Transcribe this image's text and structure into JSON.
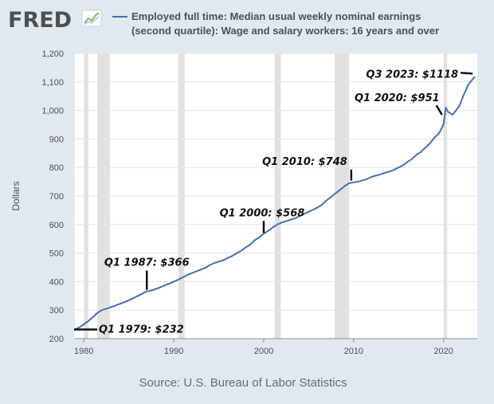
{
  "header": {
    "logo_text": "FRED",
    "logo_icon": "trend-chart-icon",
    "legend_line1": "Employed full time: Median usual weekly nominal earnings",
    "legend_line2": "(second quartile): Wage and salary workers: 16 years and over"
  },
  "footer": {
    "source": "Source: U.S. Bureau of Labor Statistics"
  },
  "colors": {
    "background": "#e1e9f0",
    "plot_background": "#ffffff",
    "series": "#4572a7",
    "recession": "#e1e1e1",
    "grid": "#e6e6e6",
    "text": "#4f4f4f",
    "annotation": "#111111"
  },
  "chart_data": {
    "type": "line",
    "title": "",
    "xlabel": "",
    "ylabel": "Dollars",
    "xlim": [
      1979,
      2023.75
    ],
    "ylim": [
      200,
      1200
    ],
    "x_ticks": [
      1980,
      1990,
      2000,
      2010,
      2020
    ],
    "y_ticks": [
      200,
      300,
      400,
      500,
      600,
      700,
      800,
      900,
      1000,
      1100,
      1200
    ],
    "y_tick_labels": [
      "200",
      "300",
      "400",
      "500",
      "600",
      "700",
      "800",
      "900",
      "1,000",
      "1,100",
      "1,200"
    ],
    "grid": "horizontal",
    "legend": "top",
    "recessions": [
      [
        1980.0,
        1980.5
      ],
      [
        1981.5,
        1982.9
      ],
      [
        1990.5,
        1991.2
      ],
      [
        2001.2,
        2001.9
      ],
      [
        2007.9,
        2009.5
      ],
      [
        2020.0,
        2020.4
      ]
    ],
    "series": [
      {
        "name": "Employed full time: Median usual weekly nominal earnings (second quartile): Wage and salary workers: 16 years and over",
        "points": [
          [
            1979.0,
            232
          ],
          [
            1979.5,
            240
          ],
          [
            1980.0,
            250
          ],
          [
            1980.5,
            262
          ],
          [
            1981.0,
            275
          ],
          [
            1981.5,
            290
          ],
          [
            1982.0,
            300
          ],
          [
            1982.5,
            305
          ],
          [
            1983.0,
            310
          ],
          [
            1983.5,
            316
          ],
          [
            1984.0,
            322
          ],
          [
            1984.5,
            328
          ],
          [
            1985.0,
            335
          ],
          [
            1985.5,
            342
          ],
          [
            1986.0,
            350
          ],
          [
            1986.5,
            358
          ],
          [
            1987.0,
            366
          ],
          [
            1987.5,
            369
          ],
          [
            1988.0,
            374
          ],
          [
            1988.5,
            380
          ],
          [
            1989.0,
            387
          ],
          [
            1989.5,
            393
          ],
          [
            1990.0,
            400
          ],
          [
            1990.5,
            407
          ],
          [
            1991.0,
            415
          ],
          [
            1991.5,
            423
          ],
          [
            1992.0,
            430
          ],
          [
            1992.5,
            436
          ],
          [
            1993.0,
            442
          ],
          [
            1993.5,
            448
          ],
          [
            1994.0,
            458
          ],
          [
            1994.5,
            465
          ],
          [
            1995.0,
            470
          ],
          [
            1995.5,
            475
          ],
          [
            1996.0,
            483
          ],
          [
            1996.5,
            490
          ],
          [
            1997.0,
            500
          ],
          [
            1997.5,
            508
          ],
          [
            1998.0,
            520
          ],
          [
            1998.5,
            530
          ],
          [
            1999.0,
            545
          ],
          [
            1999.5,
            555
          ],
          [
            2000.0,
            568
          ],
          [
            2000.5,
            578
          ],
          [
            2001.0,
            590
          ],
          [
            2001.5,
            600
          ],
          [
            2002.0,
            607
          ],
          [
            2002.5,
            612
          ],
          [
            2003.0,
            617
          ],
          [
            2003.5,
            622
          ],
          [
            2004.0,
            630
          ],
          [
            2004.5,
            637
          ],
          [
            2005.0,
            645
          ],
          [
            2005.5,
            652
          ],
          [
            2006.0,
            660
          ],
          [
            2006.5,
            670
          ],
          [
            2007.0,
            685
          ],
          [
            2007.5,
            697
          ],
          [
            2008.0,
            710
          ],
          [
            2008.5,
            722
          ],
          [
            2009.0,
            735
          ],
          [
            2009.5,
            745
          ],
          [
            2010.0,
            748
          ],
          [
            2010.5,
            750
          ],
          [
            2011.0,
            755
          ],
          [
            2011.5,
            760
          ],
          [
            2012.0,
            767
          ],
          [
            2012.5,
            772
          ],
          [
            2013.0,
            776
          ],
          [
            2013.5,
            782
          ],
          [
            2014.0,
            786
          ],
          [
            2014.5,
            792
          ],
          [
            2015.0,
            800
          ],
          [
            2015.5,
            808
          ],
          [
            2016.0,
            820
          ],
          [
            2016.5,
            830
          ],
          [
            2017.0,
            845
          ],
          [
            2017.5,
            855
          ],
          [
            2018.0,
            870
          ],
          [
            2018.5,
            885
          ],
          [
            2019.0,
            905
          ],
          [
            2019.5,
            920
          ],
          [
            2020.0,
            951
          ],
          [
            2020.25,
            1010
          ],
          [
            2020.5,
            995
          ],
          [
            2020.75,
            990
          ],
          [
            2021.0,
            985
          ],
          [
            2021.25,
            995
          ],
          [
            2021.5,
            1005
          ],
          [
            2021.75,
            1015
          ],
          [
            2022.0,
            1035
          ],
          [
            2022.25,
            1055
          ],
          [
            2022.5,
            1072
          ],
          [
            2022.75,
            1090
          ],
          [
            2023.0,
            1100
          ],
          [
            2023.25,
            1110
          ],
          [
            2023.5,
            1118
          ]
        ]
      }
    ],
    "annotations": [
      {
        "text": "Q1 1979: $232",
        "x": 1979.0,
        "y": 232
      },
      {
        "text": "Q1 1987: $366",
        "x": 1987.0,
        "y": 366
      },
      {
        "text": "Q1 2000: $568",
        "x": 2000.0,
        "y": 568
      },
      {
        "text": "Q1 2010: $748",
        "x": 2010.0,
        "y": 748
      },
      {
        "text": "Q1 2020: $951",
        "x": 2020.0,
        "y": 951
      },
      {
        "text": "Q3 2023: $1118",
        "x": 2023.5,
        "y": 1118
      }
    ]
  }
}
